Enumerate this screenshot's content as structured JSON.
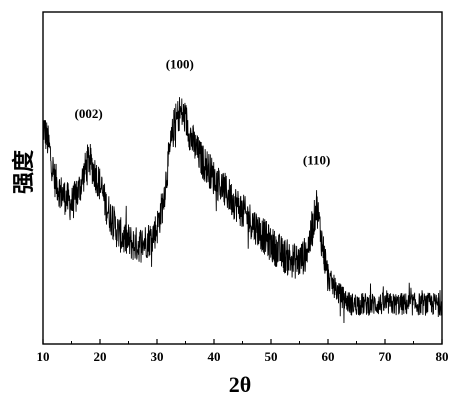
{
  "chart_data": {
    "type": "line",
    "title": "",
    "xlabel": "2θ",
    "ylabel": "强度",
    "xlim": [
      10,
      80
    ],
    "x_ticks": [
      10,
      20,
      30,
      40,
      50,
      60,
      70,
      80
    ],
    "y_ticks_shown": false,
    "grid": false,
    "series": [
      {
        "x": [
          10,
          11,
          12,
          13,
          14,
          15,
          16,
          17,
          18,
          19,
          20,
          21,
          22,
          23,
          24,
          25,
          26,
          27,
          28,
          29,
          30,
          31,
          32,
          33,
          34,
          35,
          36,
          37,
          38,
          39,
          40,
          42,
          44,
          46,
          48,
          50,
          52,
          54,
          55,
          56,
          57,
          58,
          59,
          60,
          62,
          64,
          66,
          68,
          70,
          72,
          74,
          76,
          78,
          80
        ],
        "y": [
          0.66,
          0.6,
          0.5,
          0.46,
          0.44,
          0.42,
          0.45,
          0.5,
          0.56,
          0.52,
          0.48,
          0.42,
          0.38,
          0.34,
          0.32,
          0.31,
          0.3,
          0.3,
          0.31,
          0.32,
          0.35,
          0.42,
          0.55,
          0.66,
          0.7,
          0.68,
          0.62,
          0.58,
          0.55,
          0.53,
          0.5,
          0.46,
          0.42,
          0.38,
          0.34,
          0.3,
          0.27,
          0.25,
          0.25,
          0.27,
          0.32,
          0.42,
          0.3,
          0.2,
          0.15,
          0.12,
          0.12,
          0.12,
          0.12,
          0.12,
          0.12,
          0.12,
          0.12,
          0.12
        ]
      }
    ],
    "annotations": [
      {
        "text": "(002)",
        "x": 18
      },
      {
        "text": "(100)",
        "x": 34
      },
      {
        "text": "(110)",
        "x": 58
      }
    ]
  }
}
